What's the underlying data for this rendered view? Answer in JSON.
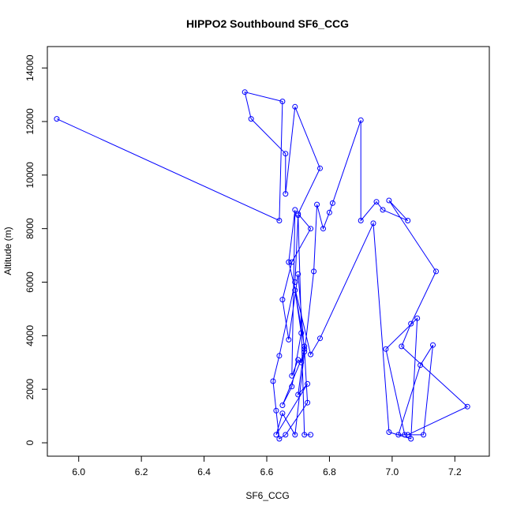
{
  "chart_data": {
    "type": "line",
    "title": "HIPPO2 Southbound SF6_CCG",
    "xlabel": "SF6_CCG",
    "ylabel": "Altitude (m)",
    "xlim": [
      5.9,
      7.31
    ],
    "ylim": [
      -500,
      14800
    ],
    "xticks": [
      "6.0",
      "6.2",
      "6.4",
      "6.6",
      "6.8",
      "7.0",
      "7.2"
    ],
    "yticks": [
      "0",
      "2000",
      "4000",
      "6000",
      "8000",
      "10000",
      "12000",
      "14000"
    ],
    "grid": false,
    "color": "#0000ff",
    "marker": "open-circle",
    "series": [
      {
        "name": "",
        "x": [
          5.93,
          6.64,
          6.65,
          6.53,
          6.55,
          6.66,
          6.66,
          6.69,
          6.77,
          6.7,
          6.74,
          6.68,
          6.65,
          6.67,
          6.7,
          6.72,
          6.65,
          6.68,
          6.71,
          6.69,
          6.72,
          6.7,
          6.73,
          6.63,
          6.65,
          6.69,
          6.75,
          6.76,
          6.78,
          6.8,
          6.81,
          6.9,
          6.9,
          6.95,
          6.97,
          7.05,
          6.99,
          7.14,
          7.06,
          7.03,
          7.24,
          7.05,
          7.02,
          7.09,
          7.13,
          7.1,
          7.04,
          6.98,
          7.08,
          7.06,
          6.99,
          6.94,
          6.77,
          6.74,
          6.67,
          6.69,
          6.68,
          6.7,
          6.71,
          6.72,
          6.73,
          6.66,
          6.64,
          6.63,
          6.62,
          6.64,
          6.69,
          6.7,
          6.72,
          6.74
        ],
        "y": [
          12100,
          8300,
          12750,
          13100,
          12100,
          10800,
          9300,
          12550,
          10250,
          8550,
          8000,
          6750,
          5350,
          3850,
          6300,
          3400,
          1400,
          2100,
          4100,
          5700,
          3600,
          1800,
          2200,
          300,
          1100,
          300,
          6400,
          8900,
          8000,
          8600,
          8950,
          12050,
          8300,
          9000,
          8700,
          8300,
          9050,
          6400,
          4450,
          3600,
          1350,
          300,
          300,
          2900,
          3650,
          300,
          300,
          3500,
          4650,
          150,
          400,
          8200,
          3900,
          3300,
          6750,
          8700,
          2500,
          3100,
          3000,
          3500,
          1500,
          300,
          150,
          1200,
          2300,
          3250,
          6000,
          8500,
          300,
          300
        ]
      }
    ]
  }
}
